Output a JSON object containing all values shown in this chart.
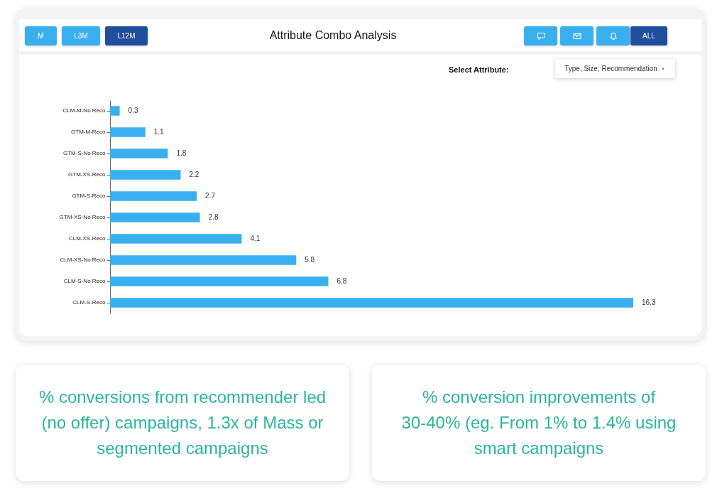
{
  "chart_data": [
    {
      "type": "bar",
      "title": "Attribute Combo Analysis",
      "orientation": "horizontal",
      "categories": [
        "CLM-M-No Reco",
        "GTM-M-Reco",
        "GTM-S-No Reco",
        "GTM-XS-Reco",
        "GTM-S-Reco",
        "GTM-XS-No Reco",
        "CLM-XS-Reco",
        "CLM-XS-No Reco",
        "CLM-S-No Reco",
        "CLM-S-Reco"
      ],
      "values": [
        0.3,
        1.1,
        1.8,
        2.2,
        2.7,
        2.8,
        4.1,
        5.8,
        6.8,
        16.3
      ],
      "color": "#3aaff0",
      "data_labels": true,
      "tick_labels": "y",
      "annotations": [
        "M",
        "L3M",
        "L12M",
        "ALL",
        "Select Attribute:",
        "Type, Size, Recommendation"
      ]
    },
    {
      "type": "other",
      "annotations": [
        "% conversions from recommender led (no offer) campaigns, 1.3x of Mass or segmented campaigns"
      ]
    },
    {
      "type": "other",
      "annotations": [
        "% conversion improvements of 30-40% (eg. From 1% to 1.4% using smart campaigns"
      ]
    }
  ]
}
